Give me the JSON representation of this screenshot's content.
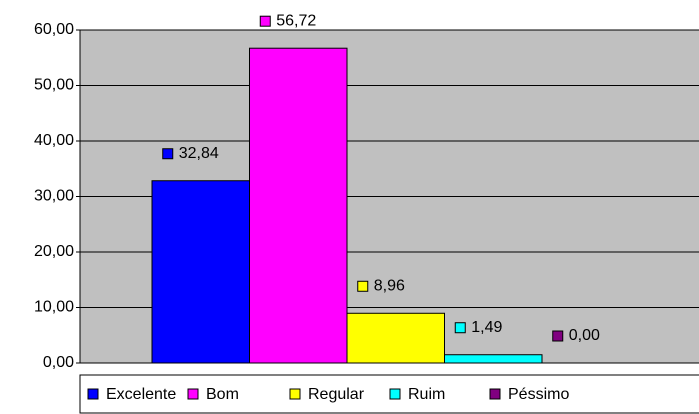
{
  "chart_data": {
    "type": "bar",
    "series": [
      {
        "name": "Excelente",
        "color": "#0000ff",
        "values": [
          32.84
        ],
        "value_labels": [
          "32,84"
        ]
      },
      {
        "name": "Bom",
        "color": "#ff00ff",
        "values": [
          56.72
        ],
        "value_labels": [
          "56,72"
        ]
      },
      {
        "name": "Regular",
        "color": "#ffff00",
        "values": [
          8.96
        ],
        "value_labels": [
          "8,96"
        ]
      },
      {
        "name": "Ruim",
        "color": "#00ffff",
        "values": [
          1.49
        ],
        "value_labels": [
          "1,49"
        ]
      },
      {
        "name": "Péssimo",
        "color": "#800080",
        "values": [
          0
        ],
        "value_labels": [
          "0,00"
        ]
      }
    ],
    "ylim": [
      0,
      60
    ],
    "yticks": [
      {
        "value": 0,
        "label": "0,00"
      },
      {
        "value": 10,
        "label": "10,00"
      },
      {
        "value": 20,
        "label": "20,00"
      },
      {
        "value": 30,
        "label": "30,00"
      },
      {
        "value": 40,
        "label": "40,00"
      },
      {
        "value": 50,
        "label": "50,00"
      },
      {
        "value": 60,
        "label": "60,00"
      }
    ],
    "grid": true,
    "legend": "bottom"
  }
}
